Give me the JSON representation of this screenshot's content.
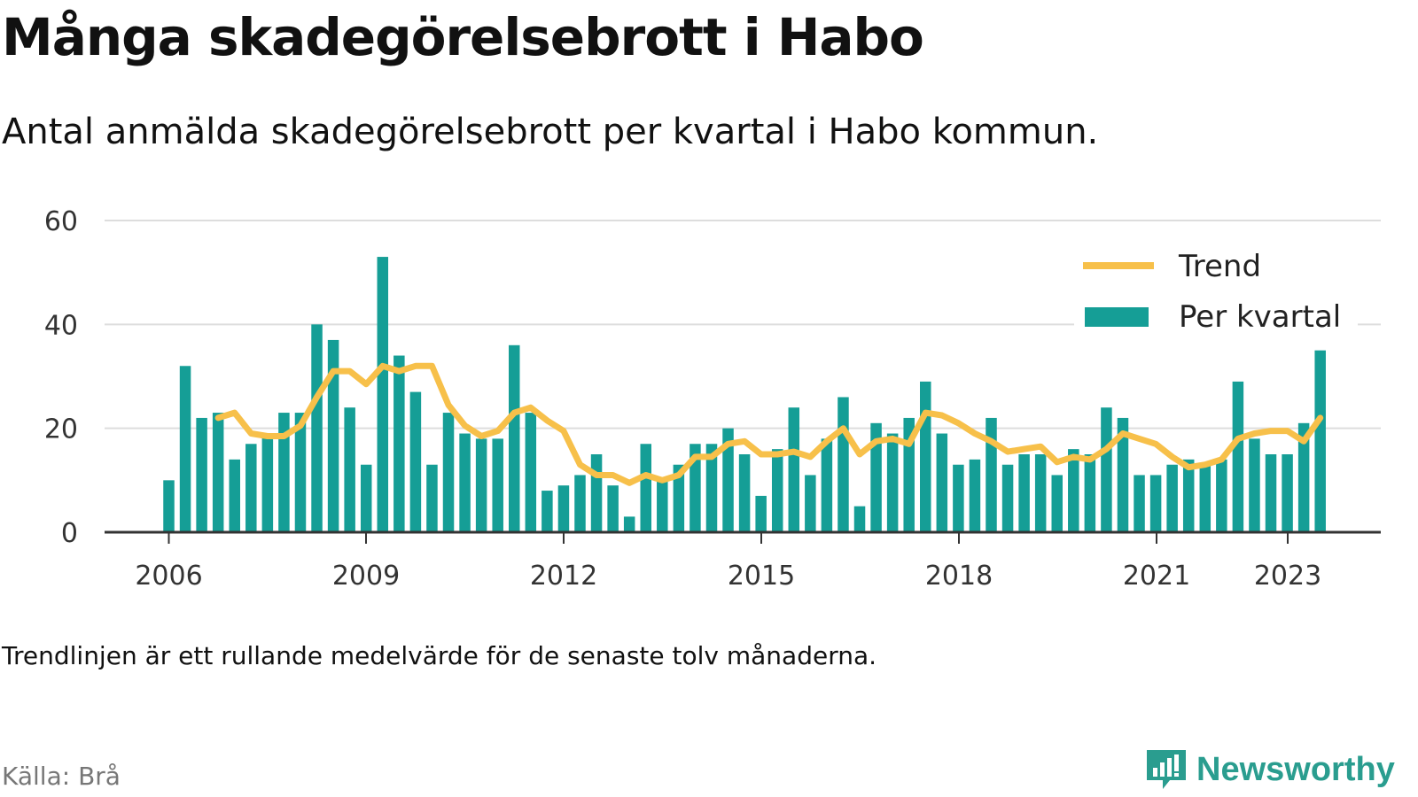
{
  "title": "Många skadegörelsebrott i Habo",
  "subtitle": "Antal anmälda skadegörelsebrott per kvartal i Habo kommun.",
  "footnote": "Trendlinjen är ett rullande medelvärde för de senaste tolv månaderna.",
  "source": "Källa: Brå",
  "brand": "Newsworthy",
  "colors": {
    "bar": "#159e96",
    "trend": "#f7c04a",
    "grid": "#dddddd",
    "axis": "#333333",
    "brand": "#2a9d8f"
  },
  "chart_data": {
    "type": "bar",
    "x_tick_labels": [
      "2006",
      "2009",
      "2012",
      "2015",
      "2018",
      "2021",
      "2023"
    ],
    "y_tick_labels": [
      "0",
      "20",
      "40",
      "60"
    ],
    "ylim": [
      0,
      60
    ],
    "grid": true,
    "legend_position": "top-right",
    "series": [
      {
        "name": "Per kvartal",
        "type": "bar",
        "values": [
          10,
          32,
          22,
          23,
          14,
          17,
          19,
          23,
          23,
          40,
          37,
          24,
          13,
          53,
          34,
          27,
          13,
          23,
          19,
          18,
          18,
          36,
          23,
          8,
          9,
          11,
          15,
          9,
          3,
          17,
          10,
          13,
          17,
          17,
          20,
          15,
          7,
          16,
          24,
          11,
          18,
          26,
          5,
          21,
          19,
          22,
          29,
          19,
          13,
          14,
          22,
          13,
          15,
          15,
          11,
          16,
          15,
          24,
          22,
          11,
          11,
          13,
          14,
          13,
          14,
          29,
          18,
          15,
          15,
          21,
          35
        ]
      },
      {
        "name": "Trend",
        "type": "line",
        "start_index": 3,
        "values": [
          22,
          23,
          19,
          18.5,
          18.5,
          20.5,
          26,
          31,
          31,
          28.5,
          32,
          31,
          32,
          32,
          24.5,
          20.5,
          18.5,
          19.5,
          23,
          24,
          21.5,
          19.5,
          13,
          11,
          11,
          9.5,
          11,
          10,
          11,
          14.5,
          14.5,
          17,
          17.5,
          15,
          15,
          15.5,
          14.5,
          17.5,
          20,
          15,
          17.5,
          18,
          17,
          23,
          22.5,
          21,
          19,
          17.5,
          15.5,
          16,
          16.5,
          13.5,
          14.5,
          14,
          16,
          19,
          18,
          17,
          14.5,
          12.5,
          13,
          14,
          18,
          19,
          19.5,
          19.5,
          17.5,
          22
        ]
      }
    ]
  }
}
